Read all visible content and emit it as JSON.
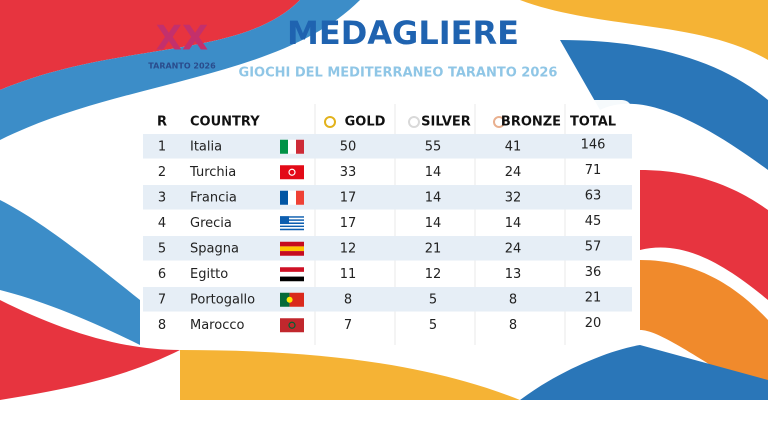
{
  "logo": {
    "numeral": "XX",
    "caption": "TARANTO 2026"
  },
  "header": {
    "title": "MEDAGLIERE",
    "subtitle": "GIOCHI DEL MEDITERRANEO TARANTO 2026"
  },
  "table": {
    "columns": [
      "R",
      "COUNTRY",
      "GOLD",
      "SILVER",
      "BRONZE",
      "TOTAL"
    ],
    "rows": [
      [
        1,
        "Italia",
        50,
        55,
        41,
        146
      ],
      [
        2,
        "Turchia",
        33,
        14,
        24,
        71
      ],
      [
        3,
        "Francia",
        17,
        14,
        32,
        63
      ],
      [
        4,
        "Grecia",
        17,
        14,
        14,
        45
      ],
      [
        5,
        "Spagna",
        12,
        21,
        24,
        57
      ],
      [
        6,
        "Egitto",
        11,
        12,
        13,
        36
      ],
      [
        7,
        "Portogallo",
        8,
        5,
        8,
        21
      ],
      [
        8,
        "Marocco",
        7,
        5,
        8,
        20
      ]
    ]
  }
}
